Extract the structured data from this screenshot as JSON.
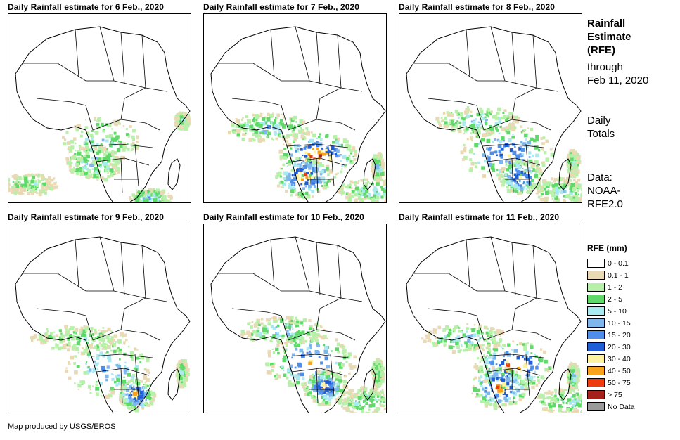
{
  "panels": [
    {
      "title": "Daily Rainfall estimate for 6 Feb., 2020",
      "intensity": "low"
    },
    {
      "title": "Daily Rainfall estimate for 7 Feb., 2020",
      "intensity": "very-high"
    },
    {
      "title": "Daily Rainfall estimate for 8 Feb., 2020",
      "intensity": "high"
    },
    {
      "title": "Daily Rainfall estimate for 9 Feb., 2020",
      "intensity": "medium"
    },
    {
      "title": "Daily Rainfall estimate for 10 Feb., 2020",
      "intensity": "high"
    },
    {
      "title": "Daily Rainfall estimate for 11 Feb., 2020",
      "intensity": "very-high"
    }
  ],
  "sidebar": {
    "title_lines": [
      "Rainfall",
      "Estimate",
      "(RFE)"
    ],
    "through_lines": [
      "through",
      "Feb 11, 2020"
    ],
    "totals_lines": [
      "Daily",
      "Totals"
    ],
    "data_lines": [
      "Data:",
      "NOAA-",
      "RFE2.0"
    ]
  },
  "legend": {
    "title": "RFE (mm)",
    "items": [
      {
        "label": "0 - 0.1",
        "color": "#ffffff"
      },
      {
        "label": "0.1 - 1",
        "color": "#ead9b5"
      },
      {
        "label": "1 - 2",
        "color": "#b7f0a8"
      },
      {
        "label": "2 - 5",
        "color": "#5fd96a"
      },
      {
        "label": "5 - 10",
        "color": "#a9eaf1"
      },
      {
        "label": "10 - 15",
        "color": "#7fb6ec"
      },
      {
        "label": "15 - 20",
        "color": "#4e8ee8"
      },
      {
        "label": "20 - 30",
        "color": "#1f5ed6"
      },
      {
        "label": "30 - 40",
        "color": "#fff3a0"
      },
      {
        "label": "40 - 50",
        "color": "#f8a31b"
      },
      {
        "label": "50 - 75",
        "color": "#ee3b0f"
      },
      {
        "label": "> 75",
        "color": "#a5221c"
      },
      {
        "label": "No Data",
        "color": "#9a9a9a"
      }
    ]
  },
  "credit": "Map produced by USGS/EROS"
}
